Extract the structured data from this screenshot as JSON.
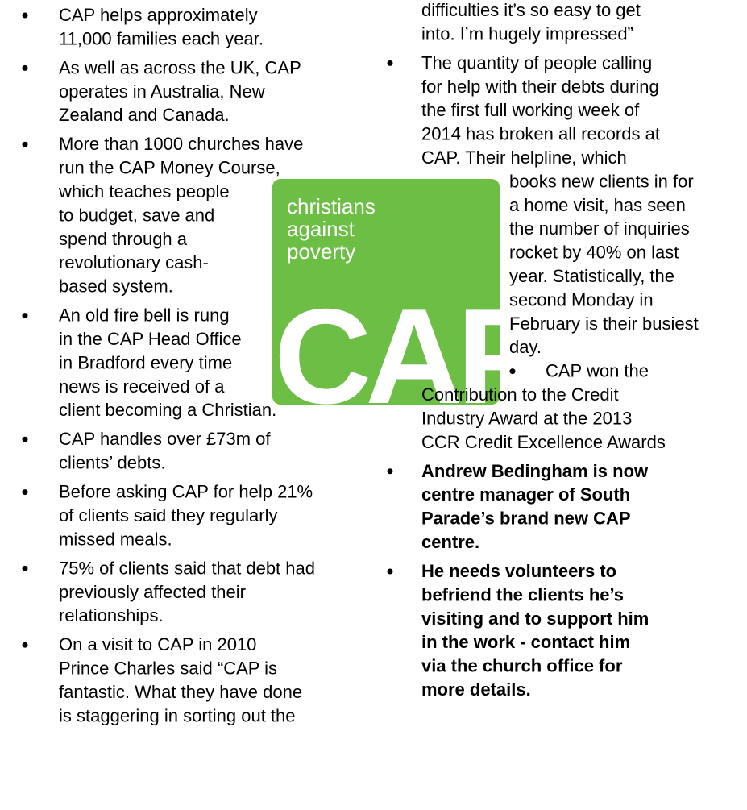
{
  "left_column": {
    "items": [
      {
        "lines": [
          "CAP helps approximately",
          "11,000 families each year."
        ]
      },
      {
        "lines": [
          "As well as across the UK, CAP",
          "operates in Australia, New",
          "Zealand and Canada."
        ]
      },
      {
        "lines": [
          "More than 1000 churches have",
          "run the CAP Money Course,",
          "which teaches people",
          "to budget, save and",
          "spend through a",
          "revolutionary cash-",
          "based system."
        ]
      },
      {
        "lines": [
          "An old fire bell is rung",
          "in the CAP Head Office",
          "in Bradford every time",
          "news is received of a",
          "client becoming a Christian."
        ]
      },
      {
        "lines": [
          "CAP handles over £73m of",
          "clients’ debts."
        ]
      },
      {
        "lines": [
          "Before asking CAP for help 21%",
          "of clients said they regularly",
          "missed meals."
        ]
      },
      {
        "lines": [
          "75% of clients said that debt had",
          "previously affected their",
          "relationships."
        ]
      },
      {
        "lines": [
          "On a visit to CAP in 2010",
          "Prince Charles said “CAP is",
          "fantastic.  What they have done",
          "is staggering in sorting out the"
        ]
      }
    ]
  },
  "right_column": {
    "items": [
      {
        "lines": [
          "difficulties it’s so easy to get",
          "into.  I’m hugely impressed”"
        ]
      },
      {
        "lines": [
          "The quantity of people calling",
          "for help with their debts during",
          "the first full working week of",
          "2014 has broken all records at",
          "CAP. Their helpline, which",
          "books new clients in for",
          "a home visit, has seen",
          "the number of inquiries",
          "rocket by 40% on last",
          "year.  Statistically, the",
          "second Monday in",
          "February is their busiest",
          "day."
        ]
      },
      {
        "lines": [
          "CAP won the",
          "Contribution to the Credit",
          "Industry Award at the 2013",
          "CCR Credit Excellence Awards"
        ]
      },
      {
        "lines": [
          "Andrew Bedingham is now",
          "centre manager of South",
          "Parade’s brand new CAP",
          "centre."
        ],
        "bold": true
      },
      {
        "lines": [
          "He needs volunteers to",
          "befriend the clients he’s",
          "visiting and to support him",
          "in the work - contact him",
          "via the church office for",
          "more details."
        ],
        "bold": true
      }
    ]
  },
  "logo": {
    "tagline": [
      "christians",
      "against",
      "poverty"
    ],
    "mark": "CAP",
    "color": "#6cbe45"
  }
}
